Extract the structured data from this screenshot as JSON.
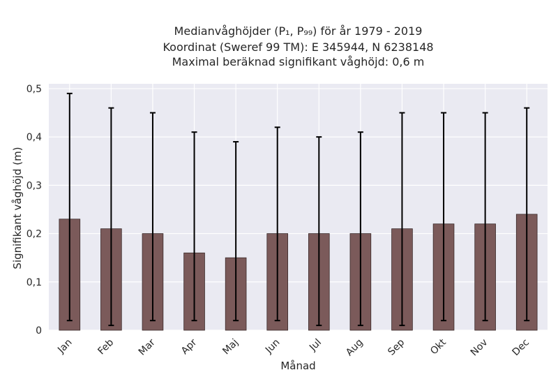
{
  "chart_data": {
    "type": "bar",
    "title_lines": [
      "Medianvåghöjder (P₁, P₉₉) för år 1979 - 2019",
      "Koordinat (Sweref 99 TM): E 345944, N 6238148",
      "Maximal beräknad signifikant våghöjd: 0,6 m"
    ],
    "xlabel": "Månad",
    "ylabel": "Signifikant våghöjd (m)",
    "categories": [
      "Jan",
      "Feb",
      "Mar",
      "Apr",
      "Maj",
      "Jun",
      "Jul",
      "Aug",
      "Sep",
      "Okt",
      "Nov",
      "Dec"
    ],
    "values": [
      0.23,
      0.21,
      0.2,
      0.16,
      0.15,
      0.2,
      0.2,
      0.2,
      0.21,
      0.22,
      0.22,
      0.24
    ],
    "error_low": [
      0.02,
      0.01,
      0.02,
      0.02,
      0.02,
      0.02,
      0.01,
      0.01,
      0.01,
      0.02,
      0.02,
      0.02
    ],
    "error_high": [
      0.49,
      0.46,
      0.45,
      0.41,
      0.39,
      0.42,
      0.4,
      0.41,
      0.45,
      0.45,
      0.45,
      0.46
    ],
    "ylim": [
      0,
      0.51
    ],
    "yticks": [
      0,
      0.1,
      0.2,
      0.3,
      0.4,
      0.5
    ],
    "ytick_labels": [
      "0",
      "0,1",
      "0,2",
      "0,3",
      "0,4",
      "0,5"
    ],
    "grid": true,
    "colors": {
      "bar": "#7b5a5a",
      "bar_edge": "#3a2a2a",
      "plot_background": "#eaeaf2",
      "grid": "#ffffff",
      "error_bar": "#000000"
    }
  }
}
